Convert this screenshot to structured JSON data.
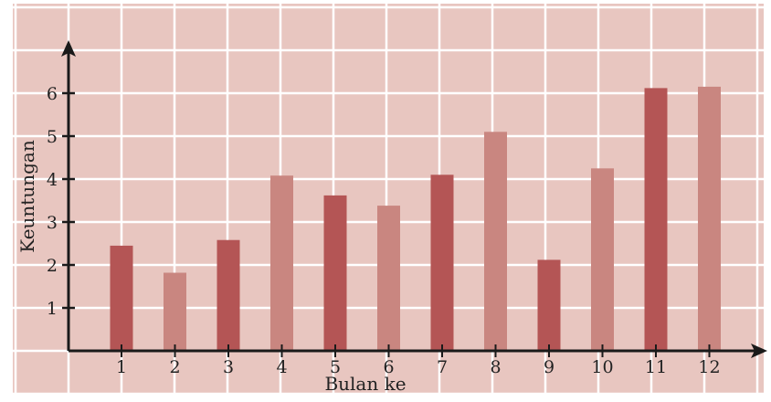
{
  "chart_data": {
    "type": "bar",
    "title": "",
    "xlabel": "Bulan ke",
    "ylabel": "Keuntungan",
    "categories": [
      "1",
      "2",
      "3",
      "4",
      "5",
      "6",
      "7",
      "8",
      "9",
      "10",
      "11",
      "12"
    ],
    "values": [
      2.45,
      1.82,
      2.58,
      4.08,
      3.62,
      3.38,
      4.1,
      5.1,
      2.12,
      4.25,
      6.12,
      6.15
    ],
    "bar_colors": [
      "#b45555",
      "#c98680",
      "#b45555",
      "#c98680",
      "#b45555",
      "#c98680",
      "#b45555",
      "#c98680",
      "#b45555",
      "#c98680",
      "#b45555",
      "#c98680"
    ],
    "y_ticks": [
      1,
      2,
      3,
      4,
      5,
      6
    ],
    "ylim": [
      0,
      7
    ],
    "grid": true,
    "legend": null
  },
  "colors": {
    "background": "#e8c6c0",
    "grid": "#ffffff",
    "axis": "#1a1a1a"
  }
}
